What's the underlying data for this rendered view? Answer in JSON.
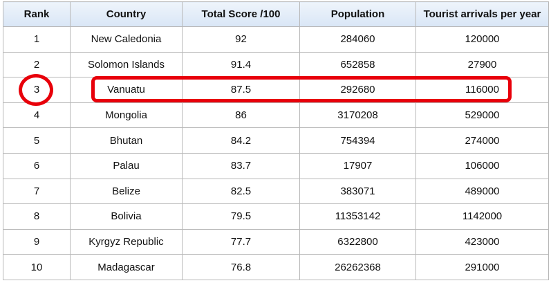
{
  "table": {
    "headers": [
      "Rank",
      "Country",
      "Total Score /100",
      "Population",
      "Tourist arrivals per year"
    ],
    "rows": [
      [
        "1",
        "New Caledonia",
        "92",
        "284060",
        "120000"
      ],
      [
        "2",
        "Solomon Islands",
        "91.4",
        "652858",
        "27900"
      ],
      [
        "3",
        "Vanuatu",
        "87.5",
        "292680",
        "116000"
      ],
      [
        "4",
        "Mongolia",
        "86",
        "3170208",
        "529000"
      ],
      [
        "5",
        "Bhutan",
        "84.2",
        "754394",
        "274000"
      ],
      [
        "6",
        "Palau",
        "83.7",
        "17907",
        "106000"
      ],
      [
        "7",
        "Belize",
        "82.5",
        "383071",
        "489000"
      ],
      [
        "8",
        "Bolivia",
        "79.5",
        "11353142",
        "1142000"
      ],
      [
        "9",
        "Kyrgyz Republic",
        "77.7",
        "6322800",
        "423000"
      ],
      [
        "10",
        "Madagascar",
        "76.8",
        "26262368",
        "291000"
      ]
    ]
  },
  "annotation": {
    "color": "#e8000a",
    "highlighted_rank": "3"
  },
  "colors": {
    "header_gradient_top": "#eef4fb",
    "header_gradient_bottom": "#d9e6f6",
    "border": "#b8b8b8"
  }
}
